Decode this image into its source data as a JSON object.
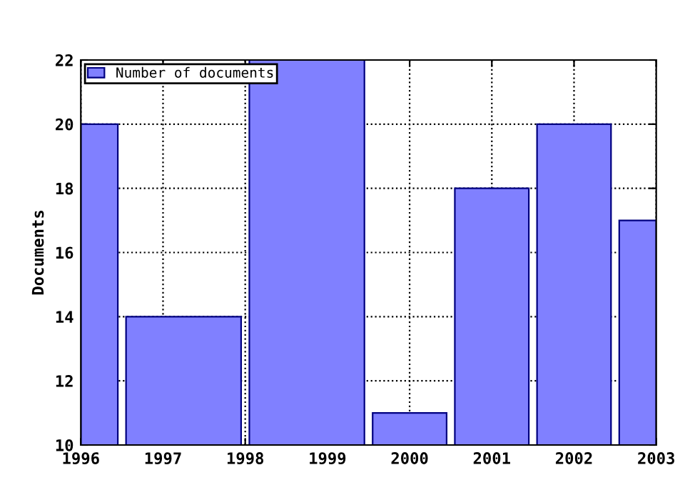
{
  "chart_data": {
    "type": "histogram",
    "ylabel": "Documents",
    "bins": [
      1996,
      1996.5,
      1998,
      1999.5,
      2000.5,
      2001.5,
      2002.5,
      2003
    ],
    "series": [
      {
        "name": "Number of documents",
        "color": "#8080ff",
        "values": [
          20,
          14,
          22,
          11,
          18,
          20,
          17
        ]
      }
    ],
    "xlim": [
      1996,
      2003
    ],
    "xticks": [
      1996,
      1997,
      1998,
      1999,
      2000,
      2001,
      2002,
      2003
    ],
    "ylim": [
      10,
      22
    ],
    "yticks": [
      10,
      12,
      14,
      16,
      18,
      20,
      22
    ],
    "grid": true,
    "legend": "top left"
  }
}
